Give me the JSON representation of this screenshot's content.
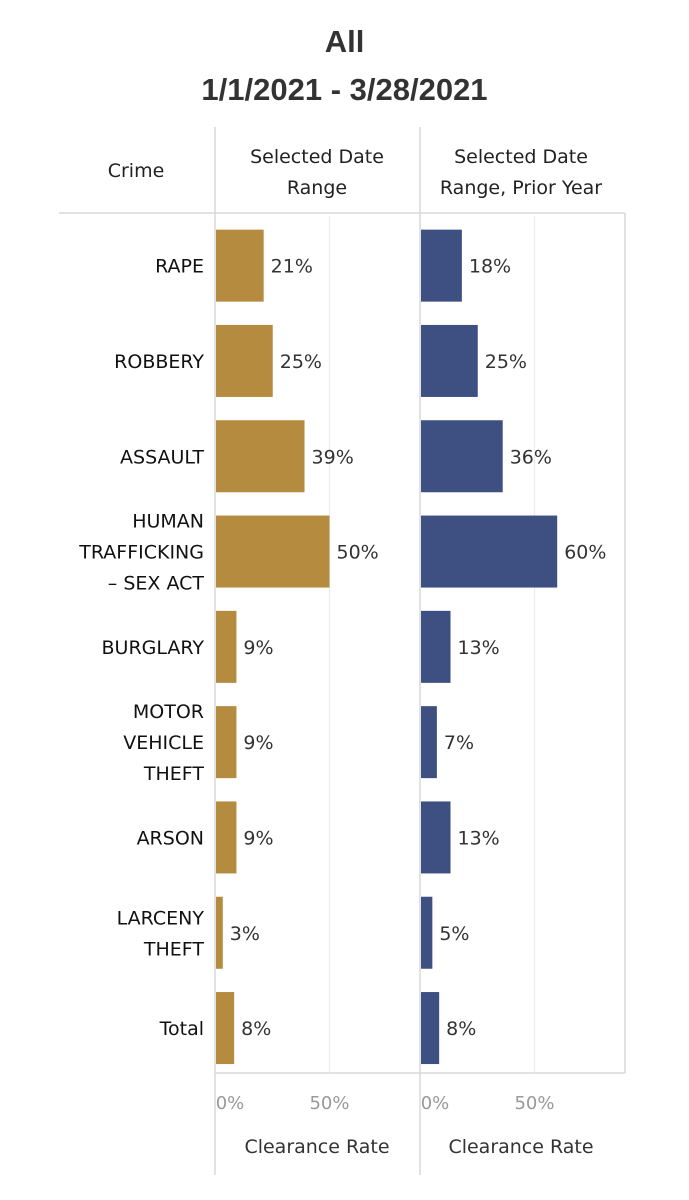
{
  "title_line1": "All",
  "title_line2": "1/1/2021 - 3/28/2021",
  "column_headers": {
    "crime": "Crime",
    "selected": [
      "Selected Date",
      "Range"
    ],
    "prior": [
      "Selected Date",
      "Range, Prior Year"
    ]
  },
  "colors": {
    "selected": "#B58B3F",
    "prior": "#3E4F82"
  },
  "chart_data": {
    "type": "bar",
    "orientation": "horizontal",
    "categories": [
      [
        "RAPE"
      ],
      [
        "ROBBERY"
      ],
      [
        "ASSAULT"
      ],
      [
        "HUMAN",
        "TRAFFICKING",
        "– SEX ACT"
      ],
      [
        "BURGLARY"
      ],
      [
        "MOTOR",
        "VEHICLE",
        "THEFT"
      ],
      [
        "ARSON"
      ],
      [
        "LARCENY",
        "THEFT"
      ],
      [
        "Total"
      ]
    ],
    "series": [
      {
        "name": "Selected Date Range",
        "values": [
          21,
          25,
          39,
          50,
          9,
          9,
          9,
          3,
          8
        ],
        "labels": [
          "21%",
          "25%",
          "39%",
          "50%",
          "9%",
          "9%",
          "9%",
          "3%",
          "8%"
        ]
      },
      {
        "name": "Selected Date Range, Prior Year",
        "values": [
          18,
          25,
          36,
          60,
          13,
          7,
          13,
          5,
          8
        ],
        "labels": [
          "18%",
          "25%",
          "36%",
          "60%",
          "13%",
          "7%",
          "13%",
          "5%",
          "8%"
        ]
      }
    ],
    "xlim": [
      0,
      90
    ],
    "xticks": [
      "0%",
      "50%"
    ],
    "xlabel": "Clearance Rate",
    "ylabel": "Crime"
  }
}
